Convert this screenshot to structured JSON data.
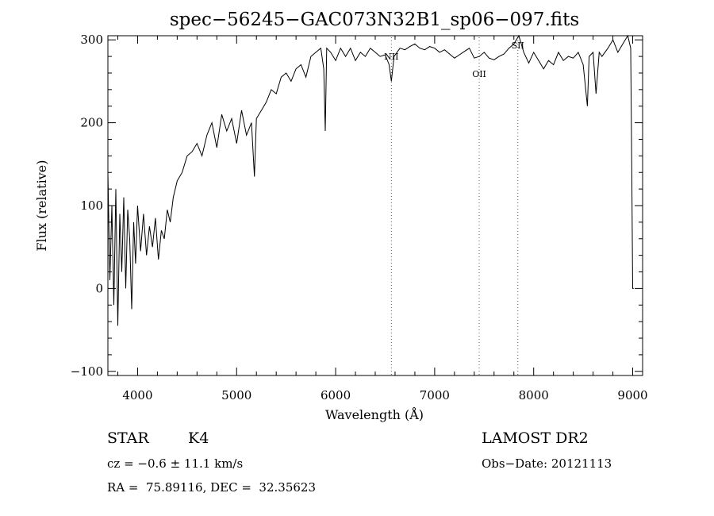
{
  "chart_data": {
    "type": "line",
    "title": "spec−56245−GAC073N32B1_sp06−097.fits",
    "xlabel": "Wavelength (Å)",
    "ylabel": "Flux (relative)",
    "xlim": [
      3700,
      9100
    ],
    "ylim": [
      -105,
      305
    ],
    "x_ticks": [
      4000,
      5000,
      6000,
      7000,
      8000,
      9000
    ],
    "y_ticks": [
      -100,
      0,
      100,
      200,
      300
    ],
    "x_tick_labels": [
      "4000",
      "5000",
      "6000",
      "7000",
      "8000",
      "9000"
    ],
    "y_tick_labels": [
      "−100",
      "0",
      "100",
      "200",
      "300"
    ],
    "grid": false,
    "legend": "none",
    "line_color": "#000000",
    "series": [
      {
        "x": [
          3700,
          3720,
          3740,
          3760,
          3780,
          3800,
          3820,
          3840,
          3860,
          3880,
          3900,
          3920,
          3940,
          3960,
          3980,
          4000,
          4030,
          4060,
          4090,
          4120,
          4150,
          4180,
          4210,
          4240,
          4270,
          4300,
          4330,
          4360,
          4400,
          4450,
          4500,
          4550,
          4600,
          4650,
          4700,
          4750,
          4800,
          4850,
          4900,
          4950,
          5000,
          5050,
          5100,
          5150,
          5180,
          5200,
          5250,
          5300,
          5350,
          5400,
          5450,
          5500,
          5550,
          5600,
          5650,
          5700,
          5750,
          5800,
          5850,
          5880,
          5895,
          5910,
          5950,
          6000,
          6050,
          6100,
          6150,
          6200,
          6250,
          6300,
          6350,
          6400,
          6450,
          6500,
          6540,
          6563,
          6590,
          6650,
          6700,
          6750,
          6800,
          6850,
          6900,
          6950,
          7000,
          7050,
          7100,
          7150,
          7200,
          7250,
          7300,
          7350,
          7400,
          7450,
          7500,
          7550,
          7600,
          7650,
          7700,
          7750,
          7800,
          7850,
          7900,
          7950,
          8000,
          8050,
          8100,
          8150,
          8200,
          8250,
          8300,
          8350,
          8400,
          8450,
          8500,
          8542,
          8560,
          8600,
          8630,
          8662,
          8690,
          8750,
          8800,
          8850,
          8900,
          8950,
          8980,
          8990,
          9000,
          9010
        ],
        "y": [
          140,
          10,
          100,
          -20,
          120,
          -45,
          90,
          20,
          110,
          0,
          95,
          60,
          -25,
          80,
          30,
          100,
          45,
          90,
          40,
          75,
          50,
          85,
          35,
          70,
          60,
          95,
          80,
          110,
          130,
          140,
          160,
          165,
          175,
          160,
          185,
          200,
          170,
          210,
          190,
          205,
          175,
          215,
          185,
          200,
          135,
          205,
          215,
          225,
          240,
          235,
          255,
          260,
          250,
          265,
          270,
          255,
          280,
          285,
          290,
          265,
          190,
          290,
          285,
          275,
          290,
          280,
          290,
          275,
          285,
          280,
          290,
          285,
          280,
          282,
          270,
          250,
          280,
          290,
          288,
          292,
          295,
          290,
          288,
          292,
          290,
          285,
          288,
          283,
          278,
          282,
          286,
          290,
          278,
          280,
          285,
          278,
          276,
          280,
          283,
          290,
          295,
          305,
          285,
          272,
          285,
          275,
          265,
          275,
          270,
          285,
          275,
          280,
          278,
          285,
          270,
          220,
          280,
          285,
          235,
          285,
          280,
          290,
          300,
          285,
          295,
          305,
          290,
          150,
          0,
          0
        ]
      }
    ],
    "annotations": [
      {
        "label": "NII",
        "x": 6563
      },
      {
        "label": "OII",
        "x": 7450
      },
      {
        "label": "SII",
        "x": 7840
      }
    ]
  },
  "info": {
    "class_label": "STAR",
    "subclass": "K4",
    "survey": "LAMOST DR2",
    "cz": "cz = −0.6 ± 11.1 km/s",
    "obs_date": "Obs−Date: 20121113",
    "coords": "RA =  75.89116, DEC =  32.35623"
  }
}
